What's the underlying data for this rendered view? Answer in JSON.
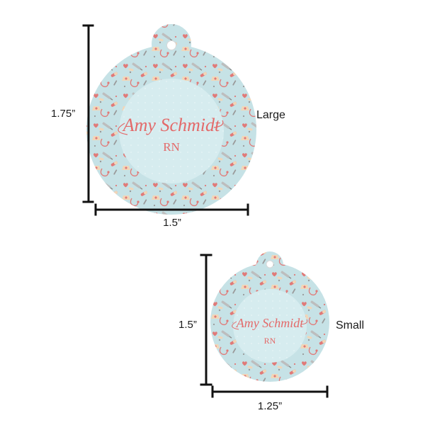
{
  "colors": {
    "tag_background": "#c6e2e6",
    "inner_circle": "#d6ecef",
    "pattern_red": "#e07a78",
    "pattern_peach": "#f1d6b8",
    "pattern_gray": "#9a9a9a",
    "text_accent": "#e36a6a",
    "ruler": "#111111"
  },
  "large_tag": {
    "name": "Amy Schmidt",
    "credential": "RN",
    "height_label": "1.75”",
    "width_label": "1.5”",
    "size_label": "Large"
  },
  "small_tag": {
    "name": "Amy Schmidt",
    "credential": "RN",
    "height_label": "1.5”",
    "width_label": "1.25”",
    "size_label": "Small"
  },
  "icons": [
    "stethoscope-icon",
    "syringe-icon",
    "pill-icon",
    "heart-icon",
    "nurse-cap-icon",
    "thermometer-icon",
    "bandage-icon"
  ]
}
